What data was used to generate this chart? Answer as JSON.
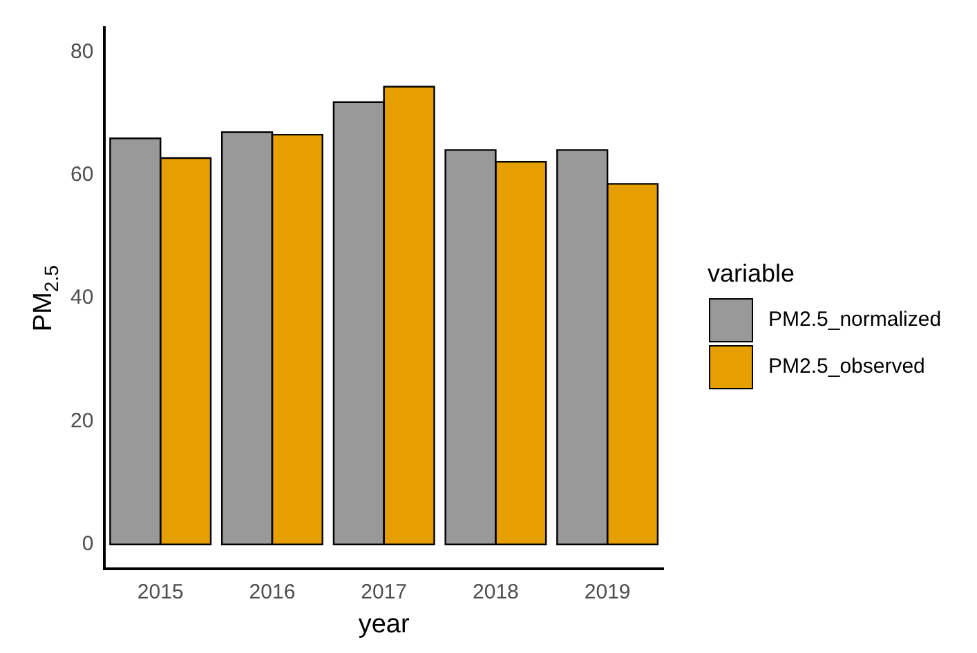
{
  "chart_data": {
    "type": "bar",
    "categories": [
      "2015",
      "2016",
      "2017",
      "2018",
      "2019"
    ],
    "series": [
      {
        "name": "PM2.5_normalized",
        "color": "#999999",
        "values": [
          66.0,
          67.0,
          71.9,
          64.1,
          64.1
        ]
      },
      {
        "name": "PM2.5_observed",
        "color": "#e69f00",
        "values": [
          62.8,
          66.6,
          74.4,
          62.2,
          58.6
        ]
      }
    ],
    "xlabel": "year",
    "ylabel": "PM$_{2.5}$",
    "legend_title": "variable",
    "legend": "right",
    "ylim": [
      -4,
      84
    ],
    "yticks": [
      0,
      20,
      40,
      60,
      80
    ],
    "grid": false
  }
}
